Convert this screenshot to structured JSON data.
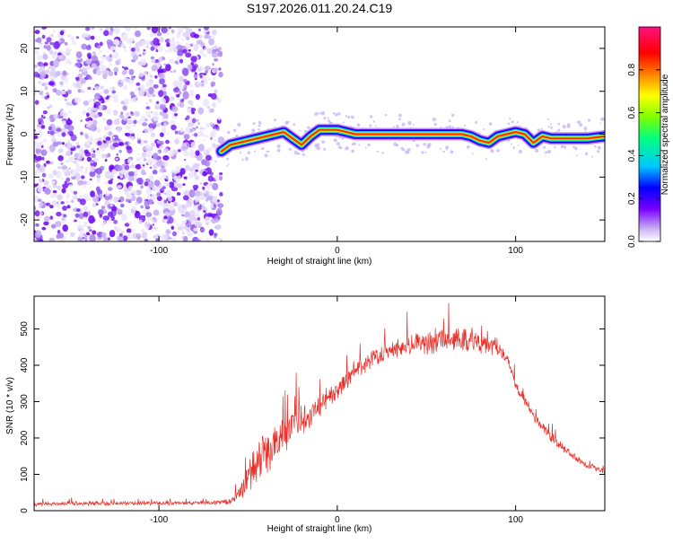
{
  "title": "S197.2026.011.20.24.C19",
  "chart_data": [
    {
      "type": "heatmap",
      "title": "S197.2026.011.20.24.C19",
      "xlabel": "Height of straight line (km)",
      "ylabel": "Frequency (Hz)",
      "xlim": [
        -170,
        150
      ],
      "ylim": [
        -25,
        25
      ],
      "xticks": [
        -100,
        0,
        100
      ],
      "yticks": [
        -20,
        -10,
        0,
        10,
        20
      ],
      "colorbar": {
        "label": "Normalized spectral amplitude",
        "range": [
          0,
          1
        ],
        "ticks": [
          0.0,
          0.2,
          0.4,
          0.6,
          0.8
        ],
        "colors": [
          "#ffffff",
          "#b08cf0",
          "#7a00ff",
          "#0000ff",
          "#00c8ff",
          "#00ff80",
          "#80ff00",
          "#ffff00",
          "#ff8000",
          "#ff0000",
          "#ff1080"
        ]
      },
      "noise_region_x": [
        -170,
        -65
      ],
      "ridge": {
        "x": [
          -65,
          -60,
          -50,
          -40,
          -35,
          -30,
          -25,
          -20,
          -15,
          -10,
          0,
          10,
          20,
          40,
          60,
          70,
          75,
          80,
          85,
          90,
          95,
          100,
          105,
          110,
          115,
          120,
          130,
          140,
          150
        ],
        "y": [
          -4,
          -2.5,
          -1.5,
          -0.5,
          0,
          0.5,
          -1,
          -2.5,
          -0.5,
          1,
          1,
          0,
          0,
          0,
          0,
          0,
          -0.5,
          -1.5,
          -2,
          -0.5,
          0,
          0.5,
          0,
          -2,
          -0.5,
          -1,
          -1,
          -1,
          -0.5
        ]
      }
    },
    {
      "type": "line",
      "xlabel": "Height of straight line (km)",
      "ylabel": "SNR (10 * v/v)",
      "xlim": [
        -170,
        150
      ],
      "ylim": [
        0,
        590
      ],
      "xticks": [
        -100,
        0,
        100
      ],
      "yticks": [
        0,
        100,
        200,
        300,
        400,
        500
      ],
      "color": "#e8302a",
      "series": [
        {
          "name": "SNR",
          "x": [
            -170,
            -150,
            -130,
            -110,
            -90,
            -70,
            -60,
            -55,
            -50,
            -45,
            -40,
            -35,
            -30,
            -25,
            -20,
            -15,
            -10,
            -5,
            0,
            10,
            20,
            30,
            40,
            50,
            60,
            70,
            80,
            90,
            95,
            100,
            110,
            120,
            130,
            140,
            150
          ],
          "values": [
            18,
            20,
            20,
            20,
            21,
            22,
            25,
            45,
            90,
            130,
            160,
            180,
            210,
            230,
            250,
            270,
            290,
            310,
            330,
            380,
            420,
            445,
            455,
            462,
            468,
            470,
            468,
            455,
            420,
            350,
            260,
            200,
            160,
            125,
            110
          ],
          "spread": [
            10,
            10,
            10,
            10,
            10,
            10,
            15,
            40,
            70,
            100,
            110,
            90,
            90,
            80,
            80,
            70,
            60,
            50,
            40,
            40,
            40,
            45,
            50,
            55,
            55,
            60,
            60,
            50,
            40,
            30,
            25,
            20,
            20,
            15,
            15
          ]
        }
      ]
    }
  ]
}
